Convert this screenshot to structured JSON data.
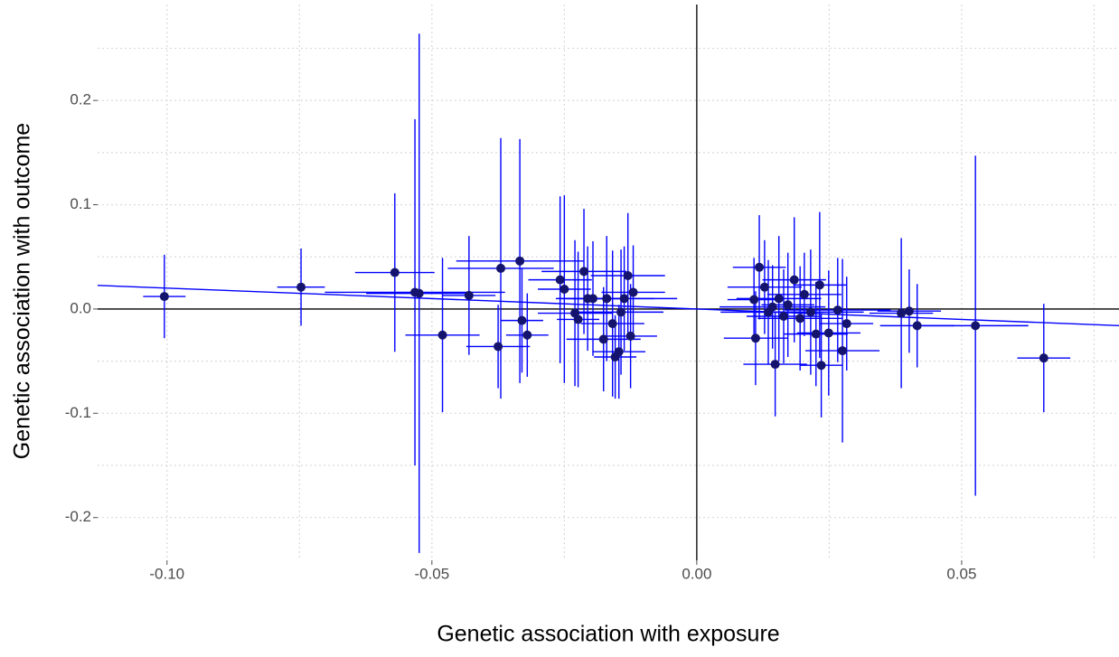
{
  "chart_data": {
    "type": "scatter",
    "x_label": "Genetic association with exposure",
    "y_label": "Genetic association with outcome",
    "xlim": [
      -0.1131,
      0.0797
    ],
    "ylim": [
      -0.241,
      0.292
    ],
    "xticks": [
      {
        "value": -0.1,
        "label": "-0.10"
      },
      {
        "value": -0.05,
        "label": "-0.05"
      },
      {
        "value": 0,
        "label": "0.00"
      },
      {
        "value": 0.05,
        "label": "0.05"
      }
    ],
    "yticks": [
      {
        "value": -0.2,
        "label": "-0.2"
      },
      {
        "value": -0.1,
        "label": "-0.1"
      },
      {
        "value": 0,
        "label": "0.0"
      },
      {
        "value": 0.1,
        "label": "0.1"
      },
      {
        "value": 0.2,
        "label": "0.2"
      }
    ],
    "xminor": [
      -0.075,
      -0.025,
      0.025,
      0.075
    ],
    "yminor": [
      -0.15,
      -0.05,
      0.05,
      0.15,
      0.25
    ],
    "grid": true,
    "hline": 0,
    "vline": 0,
    "fit_slope": -0.2,
    "point_color": "#14146e",
    "bar_color": "#0000ff",
    "x": [
      -0.1005,
      -0.0747,
      -0.057,
      -0.0532,
      -0.0524,
      -0.048,
      -0.043,
      -0.037,
      -0.0375,
      -0.0334,
      -0.033,
      -0.032,
      -0.0258,
      -0.025,
      -0.023,
      -0.0224,
      -0.0213,
      -0.0206,
      -0.0196,
      -0.0176,
      -0.017,
      -0.0159,
      -0.0154,
      -0.0147,
      -0.0143,
      -0.0137,
      -0.013,
      -0.0125,
      -0.012,
      0.0108,
      0.0111,
      0.0118,
      0.0128,
      0.0135,
      0.0143,
      0.0148,
      0.0155,
      0.0164,
      0.0172,
      0.0184,
      0.0195,
      0.0203,
      0.0215,
      0.0225,
      0.0232,
      0.0235,
      0.0249,
      0.0266,
      0.0275,
      0.0283,
      0.0386,
      0.0401,
      0.0416,
      0.0526,
      0.0655
    ],
    "y": [
      0.012,
      0.021,
      0.035,
      0.016,
      0.015,
      -0.025,
      0.013,
      0.039,
      -0.036,
      0.046,
      -0.011,
      -0.025,
      0.028,
      0.019,
      -0.004,
      -0.01,
      0.036,
      0.01,
      0.01,
      -0.029,
      0.01,
      -0.014,
      -0.046,
      -0.041,
      -0.003,
      0.01,
      0.032,
      -0.026,
      0.016,
      0.009,
      -0.028,
      0.04,
      0.021,
      -0.003,
      0.002,
      -0.053,
      0.01,
      -0.007,
      0.004,
      0.028,
      -0.009,
      0.014,
      -0.003,
      -0.024,
      0.023,
      -0.054,
      -0.023,
      -0.001,
      -0.04,
      -0.014,
      -0.004,
      -0.002,
      -0.016,
      -0.016,
      -0.047
    ],
    "x_err": [
      0.004,
      0.0045,
      0.0075,
      0.017,
      0.01,
      0.007,
      0.005,
      0.01,
      0.006,
      0.012,
      0.004,
      0.004,
      0.006,
      0.005,
      0.007,
      0.004,
      0.008,
      0.006,
      0.005,
      0.007,
      0.009,
      0.006,
      0.004,
      0.005,
      0.008,
      0.01,
      0.007,
      0.005,
      0.006,
      0.005,
      0.006,
      0.005,
      0.007,
      0.009,
      0.01,
      0.006,
      0.008,
      0.007,
      0.005,
      0.006,
      0.008,
      0.007,
      0.01,
      0.006,
      0.005,
      0.004,
      0.006,
      0.01,
      0.007,
      0.005,
      0.006,
      0.006,
      0.007,
      0.01,
      0.005
    ],
    "y_err": [
      0.04,
      0.037,
      0.076,
      0.166,
      0.249,
      0.074,
      0.057,
      0.125,
      0.04,
      0.117,
      0.05,
      0.04,
      0.08,
      0.09,
      0.07,
      0.065,
      0.06,
      0.05,
      0.055,
      0.05,
      0.06,
      0.07,
      0.04,
      0.045,
      0.06,
      0.05,
      0.06,
      0.05,
      0.045,
      0.04,
      0.045,
      0.05,
      0.045,
      0.05,
      0.04,
      0.05,
      0.06,
      0.045,
      0.05,
      0.06,
      0.05,
      0.04,
      0.06,
      0.05,
      0.07,
      0.05,
      0.06,
      0.05,
      0.088,
      0.045,
      0.072,
      0.04,
      0.04,
      0.163,
      0.052
    ]
  }
}
